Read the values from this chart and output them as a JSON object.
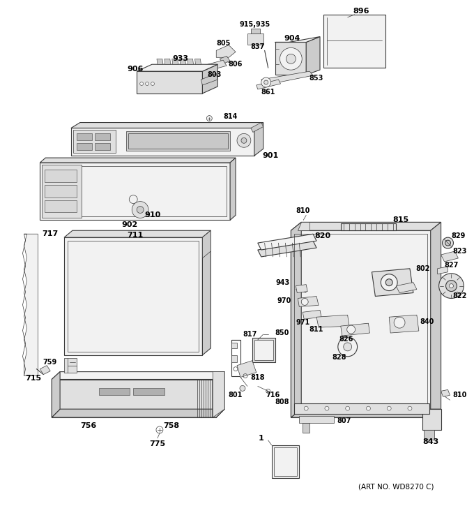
{
  "art_no": "(ART NO. WD8270 C)",
  "background_color": "#ffffff",
  "line_color": "#3a3a3a",
  "fill_light": "#f2f2f2",
  "fill_mid": "#e0e0e0",
  "fill_dark": "#cccccc",
  "text_color": "#000000",
  "fig_width": 6.8,
  "fig_height": 7.25,
  "dpi": 100
}
